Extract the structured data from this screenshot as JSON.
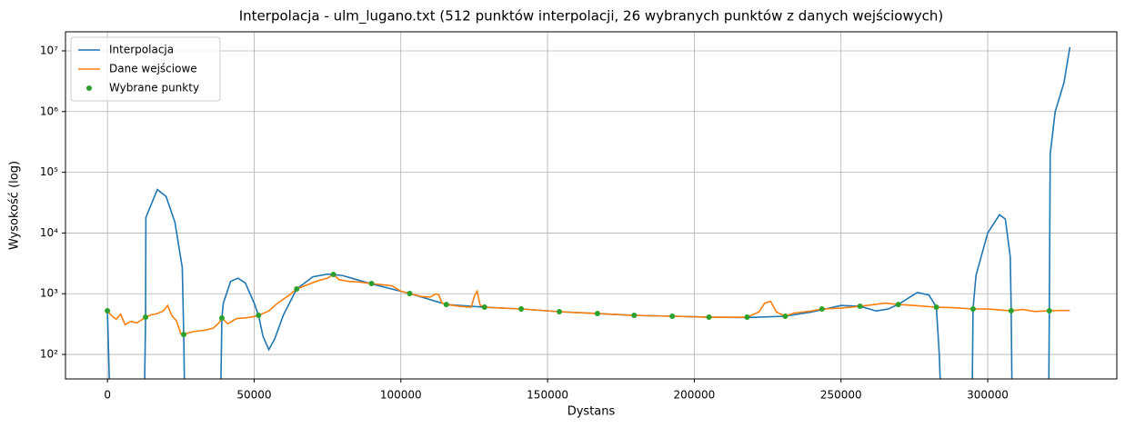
{
  "chart_data": {
    "type": "line",
    "title": "Interpolacja - ulm_lugano.txt (512 punktów interpolacji, 26 wybranych punktów z danych wejściowych)",
    "x_label": "Dystans",
    "y_label": "Wysokość (log)",
    "log_y": true,
    "grid": true,
    "legend": "upper left",
    "xlim": [
      -14300,
      344000
    ],
    "ylim": [
      39.5,
      20600000
    ],
    "xticks": [
      0,
      50000,
      100000,
      150000,
      200000,
      250000,
      300000
    ],
    "yticks": [
      {
        "value": 100,
        "label": "10²"
      },
      {
        "value": 1000,
        "label": "10³"
      },
      {
        "value": 10000,
        "label": "10⁴"
      },
      {
        "value": 100000,
        "label": "10⁵"
      },
      {
        "value": 1000000,
        "label": "10⁶"
      },
      {
        "value": 10000000,
        "label": "10⁷"
      }
    ],
    "series": [
      {
        "name": "Interpolacja",
        "color": "#1f77b4",
        "kind": "line",
        "x": [
          0,
          800,
          2000,
          12600,
          13000,
          13100,
          17000,
          20000,
          23000,
          25500,
          26000,
          26300,
          32000,
          38600,
          39000,
          39500,
          42000,
          44500,
          47000,
          50000,
          51500,
          53000,
          55000,
          57000,
          60000,
          64500,
          70000,
          75000,
          80000,
          90000,
          103000,
          115500,
          128500,
          141000,
          154000,
          167000,
          179500,
          192500,
          205000,
          218000,
          231000,
          240000,
          250000,
          256500,
          262000,
          266000,
          269500,
          276000,
          280000,
          282500,
          283500,
          284000,
          290000,
          294700,
          295000,
          296000,
          300000,
          304000,
          306000,
          307700,
          308000,
          308300,
          315000,
          320800,
          321000,
          321300,
          323000,
          326000,
          328000
        ],
        "values": [
          523,
          20,
          null,
          20,
          411,
          18000,
          52000,
          40000,
          15000,
          2700,
          213,
          20,
          null,
          20,
          397,
          700,
          1600,
          1800,
          1500,
          700,
          440,
          200,
          120,
          180,
          450,
          1197,
          1900,
          2100,
          2000,
          1450,
          1007,
          665,
          600,
          561,
          506,
          472,
          440,
          426,
          411,
          405,
          426,
          500,
          640,
          621,
          520,
          560,
          665,
          1050,
          950,
          600,
          100,
          20,
          null,
          20,
          561,
          2000,
          10000,
          20000,
          17000,
          4000,
          523,
          20,
          null,
          20,
          523,
          200000,
          1000000,
          3000000,
          11500000
        ]
      },
      {
        "name": "Dane wejściowe",
        "color": "#ff7f0e",
        "kind": "line",
        "x": [
          0,
          1500,
          3000,
          4500,
          6000,
          8000,
          10000,
          12000,
          13000,
          15000,
          17000,
          19000,
          20500,
          22000,
          23500,
          25000,
          26000,
          28000,
          30000,
          33000,
          36000,
          38000,
          39000,
          41000,
          44000,
          47000,
          50000,
          51500,
          55000,
          58000,
          62000,
          64500,
          68000,
          72000,
          75000,
          77000,
          79000,
          82000,
          86000,
          90000,
          94000,
          97000,
          100000,
          103000,
          107000,
          110000,
          112000,
          113000,
          114000,
          115500,
          120000,
          124000,
          125000,
          126000,
          127000,
          128500,
          141000,
          154000,
          167000,
          179500,
          192500,
          205000,
          218000,
          222000,
          224000,
          226000,
          228000,
          231000,
          234000,
          240000,
          243500,
          250000,
          256500,
          260000,
          265000,
          269500,
          275000,
          282500,
          288000,
          295000,
          300000,
          308000,
          312000,
          316000,
          321000,
          324000,
          328000
        ],
        "values": [
          520,
          430,
          380,
          460,
          310,
          350,
          330,
          380,
          411,
          450,
          470,
          520,
          640,
          430,
          360,
          220,
          213,
          230,
          240,
          250,
          270,
          330,
          397,
          320,
          390,
          400,
          420,
          440,
          520,
          700,
          950,
          1197,
          1400,
          1650,
          1800,
          2075,
          1700,
          1600,
          1550,
          1471,
          1400,
          1350,
          1100,
          1007,
          900,
          880,
          1000,
          950,
          700,
          665,
          620,
          600,
          900,
          1100,
          650,
          600,
          561,
          506,
          472,
          440,
          426,
          411,
          411,
          500,
          700,
          750,
          500,
          426,
          480,
          520,
          561,
          580,
          621,
          650,
          700,
          665,
          640,
          600,
          590,
          561,
          560,
          523,
          550,
          510,
          523,
          530,
          530
        ]
      },
      {
        "name": "Wybrane punkty",
        "color": "#2ca02c",
        "kind": "points",
        "x": [
          0,
          13000,
          26000,
          39000,
          51500,
          64500,
          77000,
          90000,
          103000,
          115500,
          128500,
          141000,
          154000,
          167000,
          179500,
          192500,
          205000,
          218000,
          231000,
          243500,
          256500,
          269500,
          282500,
          295000,
          308000,
          321000
        ],
        "values": [
          523,
          411,
          213,
          397,
          440,
          1197,
          2075,
          1471,
          1007,
          665,
          600,
          561,
          506,
          472,
          440,
          426,
          411,
          411,
          426,
          561,
          621,
          665,
          600,
          561,
          523,
          523
        ]
      }
    ]
  }
}
